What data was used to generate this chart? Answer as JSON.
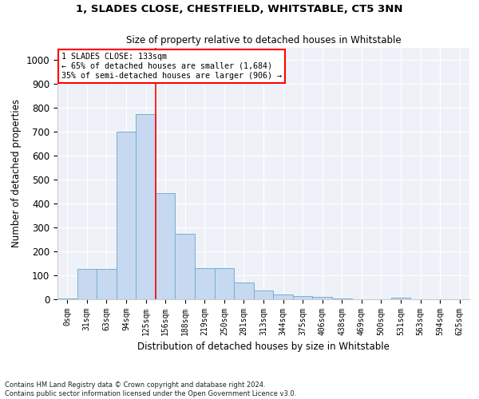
{
  "title": "1, SLADES CLOSE, CHESTFIELD, WHITSTABLE, CT5 3NN",
  "subtitle": "Size of property relative to detached houses in Whitstable",
  "xlabel": "Distribution of detached houses by size in Whitstable",
  "ylabel": "Number of detached properties",
  "bar_color": "#c6d9f0",
  "bar_edge_color": "#7aadd4",
  "background_color": "#eef2f8",
  "grid_color": "#ffffff",
  "categories": [
    "0sqm",
    "31sqm",
    "63sqm",
    "94sqm",
    "125sqm",
    "156sqm",
    "188sqm",
    "219sqm",
    "250sqm",
    "281sqm",
    "313sqm",
    "344sqm",
    "375sqm",
    "406sqm",
    "438sqm",
    "469sqm",
    "500sqm",
    "531sqm",
    "563sqm",
    "594sqm",
    "625sqm"
  ],
  "values": [
    5,
    128,
    128,
    700,
    775,
    445,
    275,
    130,
    130,
    70,
    37,
    20,
    12,
    10,
    5,
    0,
    0,
    8,
    0,
    0,
    0
  ],
  "ylim": [
    0,
    1050
  ],
  "yticks": [
    0,
    100,
    200,
    300,
    400,
    500,
    600,
    700,
    800,
    900,
    1000
  ],
  "marker_label": "1 SLADES CLOSE: 133sqm",
  "annotation_line1": "← 65% of detached houses are smaller (1,684)",
  "annotation_line2": "35% of semi-detached houses are larger (906) →",
  "footer1": "Contains HM Land Registry data © Crown copyright and database right 2024.",
  "footer2": "Contains public sector information licensed under the Open Government Licence v3.0."
}
